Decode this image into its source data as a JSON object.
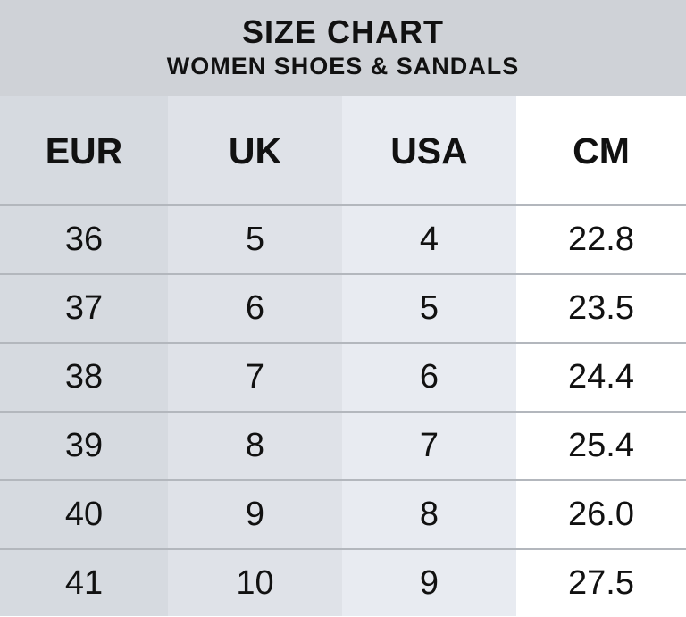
{
  "header": {
    "title": "SIZE CHART",
    "subtitle": "WOMEN SHOES & SANDALS"
  },
  "columns": [
    "EUR",
    "UK",
    "USA",
    "CM"
  ],
  "rows": [
    [
      "36",
      "5",
      "4",
      "22.8"
    ],
    [
      "37",
      "6",
      "5",
      "23.5"
    ],
    [
      "38",
      "7",
      "6",
      "24.4"
    ],
    [
      "39",
      "8",
      "7",
      "25.4"
    ],
    [
      "40",
      "9",
      "8",
      "26.0"
    ],
    [
      "41",
      "10",
      "9",
      "27.5"
    ]
  ],
  "colors": {
    "header_band": "#cfd2d7",
    "eur_column": "#d6dae0",
    "uk_column": "#dfe2e8",
    "usa_column": "#e8ebf1",
    "cm_column": "#ffffff",
    "row_rule": "#b3b7bd",
    "text": "#111111"
  }
}
